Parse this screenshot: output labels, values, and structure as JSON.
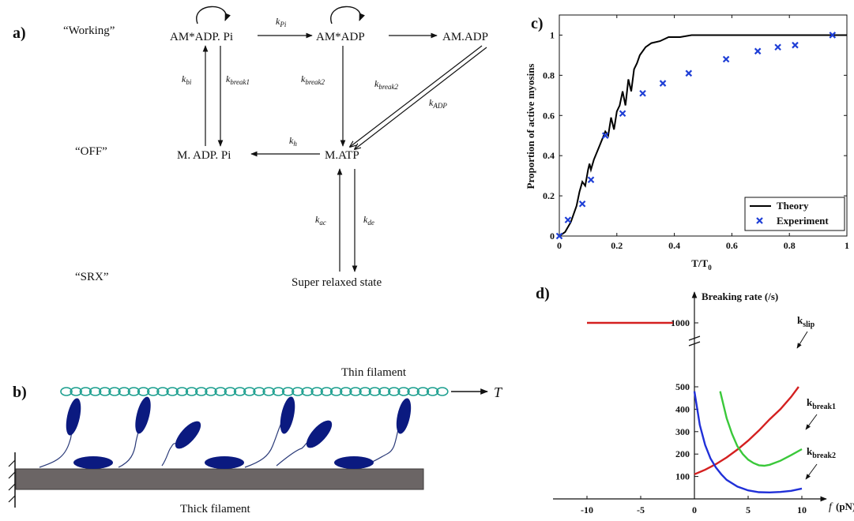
{
  "panel_a": {
    "label": "a)",
    "row_labels": {
      "working": "“Working”",
      "off": "“OFF”",
      "srx": "“SRX”"
    },
    "states": {
      "am_adp_pi": "AM*ADP. Pi",
      "am_adp_star": "AM*ADP",
      "am_adp": "AM.ADP",
      "m_adp_pi": "M. ADP. Pi",
      "m_atp": "M.ATP",
      "srx_state": "Super relaxed state"
    },
    "rates": {
      "k_pi": {
        "base": "k",
        "sub": "Pi"
      },
      "k_bi": {
        "base": "k",
        "sub": "bi"
      },
      "k_break1": {
        "base": "k",
        "sub": "break1"
      },
      "k_break2_left": {
        "base": "k",
        "sub": "break2"
      },
      "k_break2_right": {
        "base": "k",
        "sub": "break2"
      },
      "k_adp": {
        "base": "k",
        "sub": "ADP"
      },
      "k_h": {
        "base": "k",
        "sub": "h"
      },
      "k_ac": {
        "base": "k",
        "sub": "ac"
      },
      "k_de": {
        "base": "k",
        "sub": "de"
      }
    }
  },
  "panel_b": {
    "label": "b)",
    "thin_filament": "Thin filament",
    "thick_filament": "Thick filament",
    "force_label": "T",
    "colors": {
      "actin": "#1fa090",
      "myosin": "#0b1a80",
      "thick": "#6b6565"
    }
  },
  "chart_data": [
    {
      "type": "line",
      "label": "c)",
      "xlabel": "T/T",
      "xlabel_sub": "0",
      "ylabel": "Proportion of active myosins",
      "xlim": [
        0,
        1
      ],
      "ylim": [
        0,
        1.1
      ],
      "xticks": [
        "0",
        "0.2",
        "0.4",
        "0.6",
        "0.8",
        "1"
      ],
      "yticks": [
        "0",
        "0.2",
        "0.4",
        "0.6",
        "0.8",
        "1"
      ],
      "legend_position": "bottom-right",
      "series": [
        {
          "name": "Theory",
          "style": "line",
          "color": "#000000",
          "x": [
            0,
            0.02,
            0.04,
            0.06,
            0.07,
            0.08,
            0.09,
            0.1,
            0.105,
            0.11,
            0.12,
            0.14,
            0.16,
            0.17,
            0.18,
            0.19,
            0.2,
            0.21,
            0.22,
            0.23,
            0.24,
            0.25,
            0.26,
            0.27,
            0.28,
            0.3,
            0.32,
            0.35,
            0.38,
            0.42,
            0.46,
            0.5,
            0.6,
            0.8,
            1.0
          ],
          "y": [
            0,
            0.02,
            0.07,
            0.15,
            0.22,
            0.27,
            0.25,
            0.33,
            0.36,
            0.33,
            0.38,
            0.45,
            0.52,
            0.5,
            0.59,
            0.53,
            0.62,
            0.65,
            0.72,
            0.65,
            0.78,
            0.72,
            0.83,
            0.86,
            0.9,
            0.94,
            0.96,
            0.97,
            0.99,
            0.99,
            1.0,
            1.0,
            1.0,
            1.0,
            1.0
          ]
        },
        {
          "name": "Experiment",
          "style": "marker",
          "marker": "x",
          "color": "#1f3fd6",
          "x": [
            0,
            0.03,
            0.08,
            0.11,
            0.16,
            0.22,
            0.29,
            0.36,
            0.45,
            0.58,
            0.69,
            0.76,
            0.82,
            0.95
          ],
          "y": [
            0,
            0.08,
            0.16,
            0.28,
            0.5,
            0.61,
            0.71,
            0.76,
            0.81,
            0.88,
            0.92,
            0.94,
            0.95,
            1.0
          ]
        }
      ]
    },
    {
      "type": "line",
      "label": "d)",
      "ylabel": "Breaking rate (/s)",
      "xlabel": "f",
      "xlabel_unit": "(pN)",
      "xlim": [
        -11,
        11
      ],
      "ylim": [
        0,
        1050
      ],
      "xticks": [
        "-10",
        "-5",
        "0",
        "5",
        "10"
      ],
      "yticks": [
        "100",
        "200",
        "300",
        "400",
        "500",
        "1000"
      ],
      "axis_break": true,
      "series": [
        {
          "name": "k_slip",
          "label_base": "k",
          "label_sub": "slip",
          "color": "#d42020",
          "x": [
            -10,
            -8,
            -6,
            -4,
            -2,
            0,
            1,
            2,
            3,
            4,
            5,
            6,
            7,
            8,
            9,
            9.7
          ],
          "y": [
            1000,
            1000,
            1000,
            1000,
            1000,
            110,
            130,
            155,
            185,
            220,
            260,
            305,
            355,
            400,
            455,
            500
          ]
        },
        {
          "name": "k_break1",
          "label_base": "k",
          "label_sub": "break1",
          "color": "#3ac83a",
          "x": [
            2.4,
            3,
            3.5,
            4,
            4.5,
            5,
            5.5,
            6,
            6.5,
            7,
            8,
            9,
            10
          ],
          "y": [
            480,
            360,
            290,
            235,
            200,
            175,
            160,
            150,
            148,
            152,
            170,
            195,
            222
          ]
        },
        {
          "name": "k_break2",
          "label_base": "k",
          "label_sub": "break2",
          "color": "#2030d8",
          "x": [
            0,
            0.5,
            1,
            1.5,
            2,
            2.5,
            3,
            4,
            5,
            6,
            7,
            8,
            9,
            10
          ],
          "y": [
            480,
            330,
            240,
            180,
            140,
            110,
            85,
            55,
            38,
            30,
            29,
            31,
            36,
            46
          ]
        }
      ]
    }
  ]
}
